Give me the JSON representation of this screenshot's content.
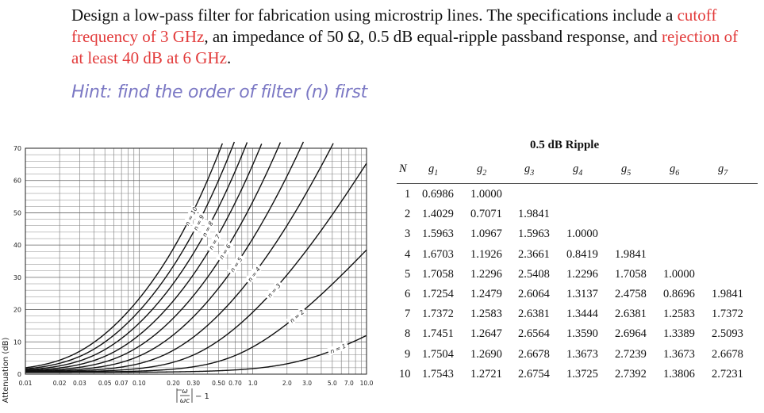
{
  "problem": {
    "part1": "Design a low-pass filter for fabrication using microstrip lines. The specifications include a ",
    "cutoff": "cutoff frequency of 3 GHz",
    "part2": ", an impedance of 50 Ω, 0.5 dB equal-ripple passband response, and ",
    "rejection": "rejection of at least 40 dB at 6 GHz",
    "part3": "."
  },
  "hint": "Hint: find the order of filter (n) first",
  "colors": {
    "accent_red": "#e23b3b",
    "hint_purple": "#7b78c4"
  },
  "chart_data": {
    "type": "line",
    "ylabel": "Attenuation (dB)",
    "xlabel_formula": "|ω/ωc| − 1",
    "x_scale": "log",
    "xlim": [
      0.01,
      10.0
    ],
    "ylim": [
      0,
      70
    ],
    "x_ticks": [
      "0.01",
      "0.02",
      "0.03",
      "0.05",
      "0.07",
      "0.10",
      "0.20",
      "0.30",
      "0.50",
      "0.70",
      "1.0",
      "2.0",
      "3.0",
      "5.0",
      "7.0",
      "10.0"
    ],
    "y_ticks": [
      "0",
      "10",
      "20",
      "30",
      "40",
      "50",
      "60",
      "70"
    ],
    "ripple_db": 0.5,
    "grid": true,
    "series": [
      {
        "name": "n = 1",
        "order": 1
      },
      {
        "name": "n = 2",
        "order": 2
      },
      {
        "name": "n = 3",
        "order": 3
      },
      {
        "name": "n = 4",
        "order": 4
      },
      {
        "name": "n = 5",
        "order": 5
      },
      {
        "name": "n = 6",
        "order": 6
      },
      {
        "name": "n = 7",
        "order": 7
      },
      {
        "name": "n = 8",
        "order": 8
      },
      {
        "name": "n = 9",
        "order": 9
      },
      {
        "name": "n = 10",
        "order": 10
      }
    ]
  },
  "table": {
    "title": "0.5 dB Ripple",
    "headers": [
      "N",
      "g1",
      "g2",
      "g3",
      "g4",
      "g5",
      "g6",
      "g7"
    ],
    "rows": [
      [
        "1",
        "0.6986",
        "1.0000"
      ],
      [
        "2",
        "1.4029",
        "0.7071",
        "1.9841"
      ],
      [
        "3",
        "1.5963",
        "1.0967",
        "1.5963",
        "1.0000"
      ],
      [
        "4",
        "1.6703",
        "1.1926",
        "2.3661",
        "0.8419",
        "1.9841"
      ],
      [
        "5",
        "1.7058",
        "1.2296",
        "2.5408",
        "1.2296",
        "1.7058",
        "1.0000"
      ],
      [
        "6",
        "1.7254",
        "1.2479",
        "2.6064",
        "1.3137",
        "2.4758",
        "0.8696",
        "1.9841"
      ],
      [
        "7",
        "1.7372",
        "1.2583",
        "2.6381",
        "1.3444",
        "2.6381",
        "1.2583",
        "1.7372"
      ],
      [
        "8",
        "1.7451",
        "1.2647",
        "2.6564",
        "1.3590",
        "2.6964",
        "1.3389",
        "2.5093"
      ],
      [
        "9",
        "1.7504",
        "1.2690",
        "2.6678",
        "1.3673",
        "2.7239",
        "1.3673",
        "2.6678"
      ],
      [
        "10",
        "1.7543",
        "1.2721",
        "2.6754",
        "1.3725",
        "2.7392",
        "1.3806",
        "2.7231"
      ]
    ]
  }
}
